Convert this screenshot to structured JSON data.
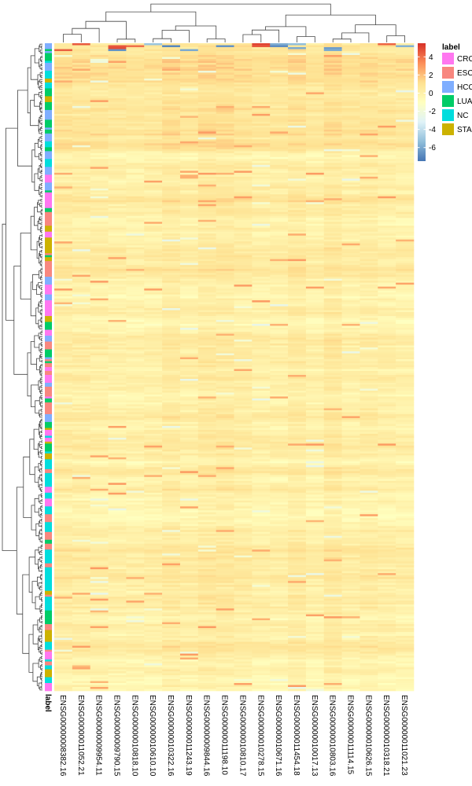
{
  "chart_data": {
    "type": "heatmap",
    "title": "",
    "columns": [
      "ENSG00000008382.16",
      "ENSG00000011052.21",
      "ENSG00000009954.11",
      "ENSG00000009790.15",
      "ENSG00000010818.10",
      "ENSG00000010610.10",
      "ENSG00000010322.16",
      "ENSG00000011243.19",
      "ENSG00000009844.16",
      "ENSG00000011198.10",
      "ENSG00000010810.17",
      "ENSG00000010278.15",
      "ENSG00000010671.16",
      "ENSG00000011454.18",
      "ENSG00000010017.13",
      "ENSG00000010803.16",
      "ENSG00000011114.15",
      "ENSG00000010626.15",
      "ENSG00000010318.21",
      "ENSG00000011021.23"
    ],
    "row_count": 330,
    "row_annotation": {
      "label": "label",
      "categories": [
        {
          "name": "CRC",
          "color": "#FF77F0"
        },
        {
          "name": "ESC",
          "color": "#F8877F"
        },
        {
          "name": "HCC",
          "color": "#7FAEFF"
        },
        {
          "name": "LUA",
          "color": "#00CC66"
        },
        {
          "name": "NC",
          "color": "#00DDDD"
        },
        {
          "name": "STA",
          "color": "#CCB200"
        }
      ]
    },
    "color_scale": {
      "ticks": [
        "4",
        "2",
        "0",
        "-2",
        "-4",
        "-6"
      ],
      "min": -7.5,
      "max": 5.5,
      "colors": [
        "#4575B4",
        "#91BFDB",
        "#E0F3F8",
        "#FFFFBF",
        "#FEE090",
        "#FC8D59",
        "#D73027"
      ]
    },
    "legend": {
      "title": "label",
      "position": "right"
    },
    "dendrograms": {
      "rows": true,
      "columns": true
    }
  }
}
